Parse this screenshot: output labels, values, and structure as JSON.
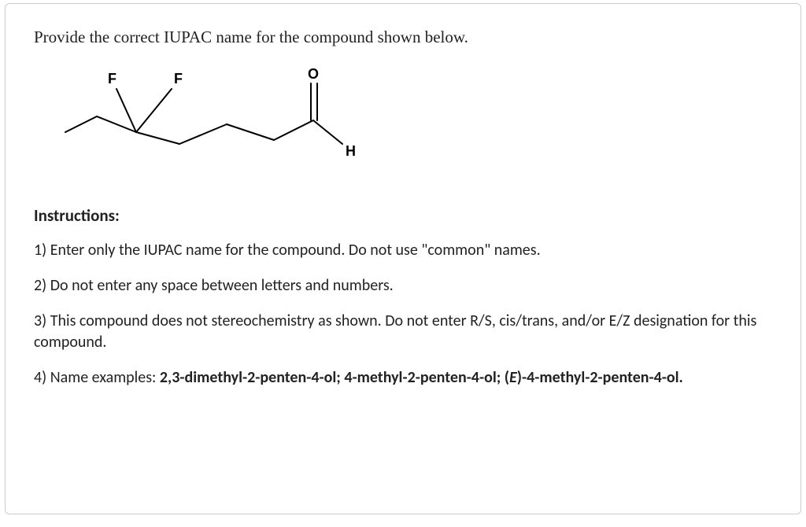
{
  "prompt": "Provide the correct IUPAC name for the compound shown below.",
  "structure": {
    "atoms": {
      "F1": "F",
      "F2": "F",
      "O": "O",
      "H": "H"
    },
    "line_color": "#000000",
    "line_width": 2
  },
  "instructions_heading": "Instructions:",
  "instructions": [
    {
      "num": "1)",
      "text_parts": [
        {
          "t": "  Enter only the IUPAC name for the compound.  Do not use \"common\" names.",
          "bold": false
        }
      ]
    },
    {
      "num": "2)",
      "text_parts": [
        {
          "t": "  Do not enter any space between letters and numbers.",
          "bold": false
        }
      ]
    },
    {
      "num": "3)",
      "text_parts": [
        {
          "t": "  This compound does not stereochemistry as shown.  Do not enter R/S, cis/trans, and/or E/Z designation for this compound.",
          "bold": false
        }
      ]
    },
    {
      "num": "4)",
      "text_parts": [
        {
          "t": " Name examples:  ",
          "bold": false
        },
        {
          "t": "2,3-dimethyl-2-penten-4-ol;  4-methyl-2-penten-4-ol;  (",
          "bold": true
        },
        {
          "t": "E",
          "bold": true,
          "italic": true
        },
        {
          "t": ")-4-methyl-2-penten-4-ol.",
          "bold": true
        }
      ]
    }
  ]
}
